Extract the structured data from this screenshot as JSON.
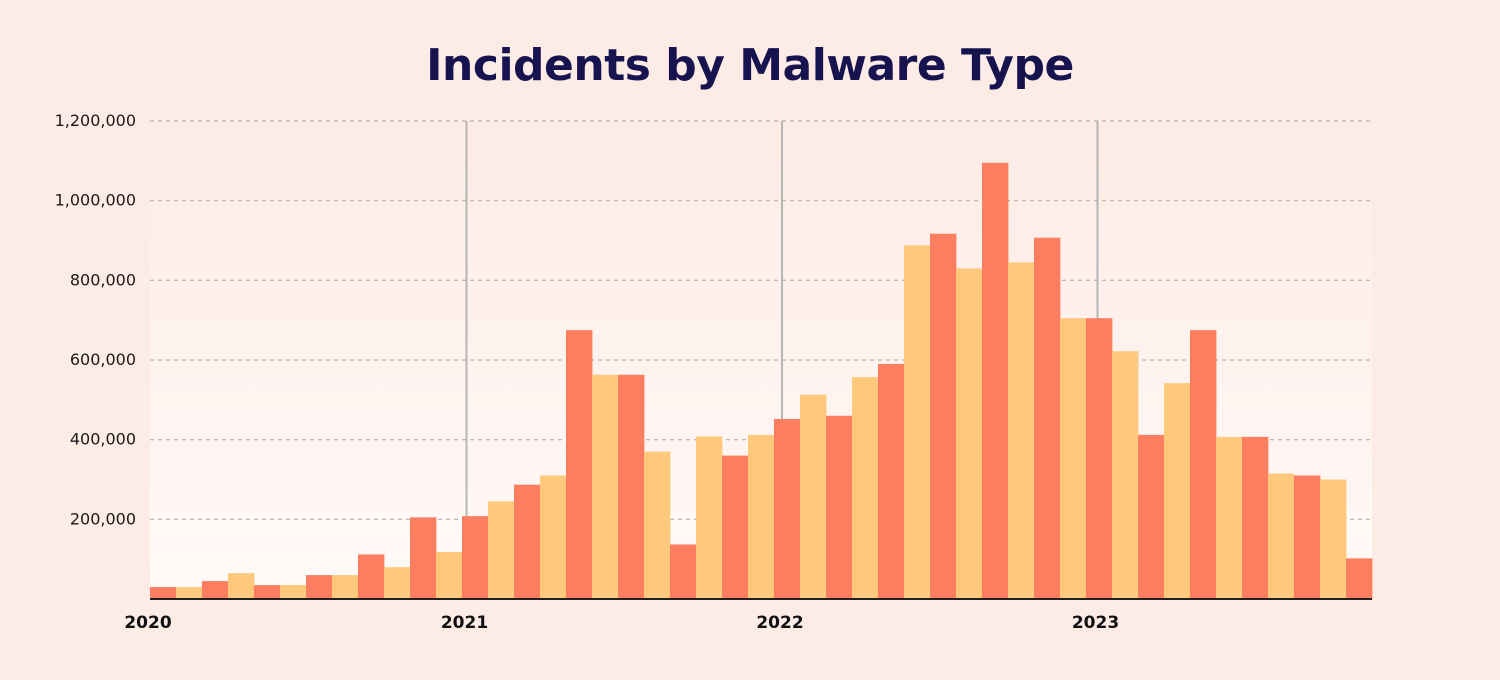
{
  "colors": {
    "background": "#fdebe5",
    "title": "#17134f",
    "series_coral": "#fa7e5f",
    "series_yellow": "#fec97c",
    "grid": "#b8b0ad",
    "year_line": "#b5b5b5",
    "axis": "#222222"
  },
  "chart_data": {
    "type": "bar",
    "title": "Incidents by Malware Type",
    "xlabel": "",
    "ylabel": "",
    "ylim": [
      0,
      1200000
    ],
    "grid": true,
    "yticks": [
      200000,
      400000,
      600000,
      800000,
      1000000,
      1200000
    ],
    "ytick_labels": [
      "200,000",
      "400,000",
      "600,000",
      "800,000",
      "1,000,000",
      "1,200,000"
    ],
    "xtick_labels": [
      "2020",
      "2021",
      "2022",
      "2023"
    ],
    "categories": [
      "2020-01",
      "2020-02",
      "2020-03",
      "2020-04",
      "2020-05",
      "2020-06",
      "2020-07",
      "2020-08",
      "2020-09",
      "2020-10",
      "2020-11",
      "2020-12",
      "2021-01",
      "2021-02",
      "2021-03",
      "2021-04",
      "2021-05",
      "2021-06",
      "2021-07",
      "2021-08",
      "2021-09",
      "2021-10",
      "2021-11",
      "2021-12",
      "2022-01",
      "2022-02",
      "2022-03",
      "2022-04",
      "2022-05",
      "2022-06",
      "2022-07",
      "2022-08",
      "2022-09",
      "2022-10",
      "2022-11",
      "2022-12",
      "2023-01",
      "2023-02",
      "2023-03",
      "2023-04",
      "2023-05",
      "2023-06",
      "2023-07",
      "2023-08",
      "2023-09",
      "2023-10",
      "2023-11"
    ],
    "bar_colors": [
      "coral",
      "yellow",
      "coral",
      "yellow",
      "coral",
      "yellow",
      "coral",
      "yellow",
      "coral",
      "yellow",
      "coral",
      "yellow",
      "coral",
      "yellow",
      "coral",
      "yellow",
      "coral",
      "yellow",
      "coral",
      "yellow",
      "coral",
      "yellow",
      "coral",
      "yellow",
      "coral",
      "yellow",
      "coral",
      "yellow",
      "coral",
      "yellow",
      "coral",
      "yellow",
      "coral",
      "yellow",
      "coral",
      "yellow",
      "coral",
      "yellow",
      "coral",
      "yellow",
      "coral",
      "yellow",
      "coral",
      "yellow",
      "coral",
      "yellow",
      "coral"
    ],
    "values": [
      30000,
      30000,
      45000,
      65000,
      35000,
      35000,
      60000,
      60000,
      112000,
      80000,
      205000,
      118000,
      208000,
      245000,
      287000,
      310000,
      675000,
      563000,
      563000,
      370000,
      137000,
      408000,
      360000,
      412000,
      452000,
      513000,
      460000,
      557000,
      590000,
      888000,
      917000,
      830000,
      1095000,
      845000,
      907000,
      705000,
      705000,
      622000,
      412000,
      542000,
      675000,
      407000,
      407000,
      315000,
      310000,
      300000,
      102000
    ]
  }
}
